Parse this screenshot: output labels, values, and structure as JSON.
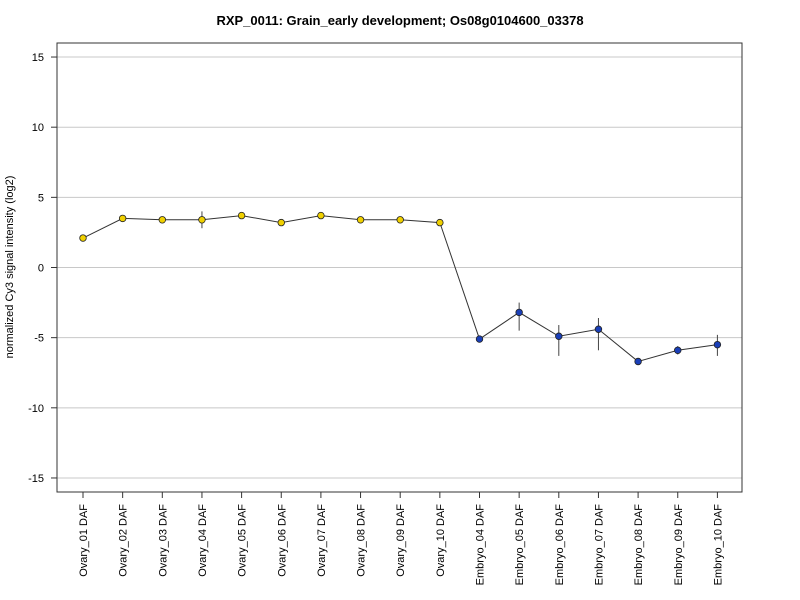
{
  "chart_data": {
    "type": "line",
    "title": "RXP_0011: Grain_early development; Os08g0104600_03378",
    "xlabel": "",
    "ylabel": "normalized Cy3 signal intensity (log2)",
    "ylim": [
      -16,
      16
    ],
    "yticks": [
      15,
      10,
      5,
      0,
      -5,
      -10,
      -15
    ],
    "grid": true,
    "legend": "none",
    "categories": [
      "Ovary_01 DAF",
      "Ovary_02 DAF",
      "Ovary_03 DAF",
      "Ovary_04 DAF",
      "Ovary_05 DAF",
      "Ovary_06 DAF",
      "Ovary_07 DAF",
      "Ovary_08 DAF",
      "Ovary_09 DAF",
      "Ovary_10 DAF",
      "Embryo_04 DAF",
      "Embryo_05 DAF",
      "Embryo_06 DAF",
      "Embryo_07 DAF",
      "Embryo_08 DAF",
      "Embryo_09 DAF",
      "Embryo_10 DAF"
    ],
    "values": [
      2.1,
      3.5,
      3.4,
      3.4,
      3.7,
      3.2,
      3.7,
      3.4,
      3.4,
      3.2,
      -5.1,
      -3.2,
      -4.9,
      -4.4,
      -6.7,
      -5.9,
      -5.5
    ],
    "error_low": [
      1.9,
      3.3,
      3.2,
      2.8,
      3.5,
      3.0,
      3.5,
      3.2,
      3.2,
      3.0,
      -5.3,
      -4.5,
      -6.3,
      -5.9,
      -6.8,
      -6.2,
      -6.3
    ],
    "error_high": [
      2.3,
      3.7,
      3.6,
      4.0,
      3.9,
      3.4,
      3.9,
      3.6,
      3.6,
      3.4,
      -4.9,
      -2.5,
      -4.1,
      -3.6,
      -6.5,
      -5.6,
      -4.8
    ],
    "marker_colors": [
      "#f0d000",
      "#f0d000",
      "#f0d000",
      "#f0d000",
      "#f0d000",
      "#f0d000",
      "#f0d000",
      "#f0d000",
      "#f0d000",
      "#f0d000",
      "#1a3fb8",
      "#1a3fb8",
      "#1a3fb8",
      "#1a3fb8",
      "#1a3fb8",
      "#1a3fb8",
      "#1a3fb8"
    ],
    "line_color": "#333333",
    "grid_color": "#c8c8c8"
  }
}
